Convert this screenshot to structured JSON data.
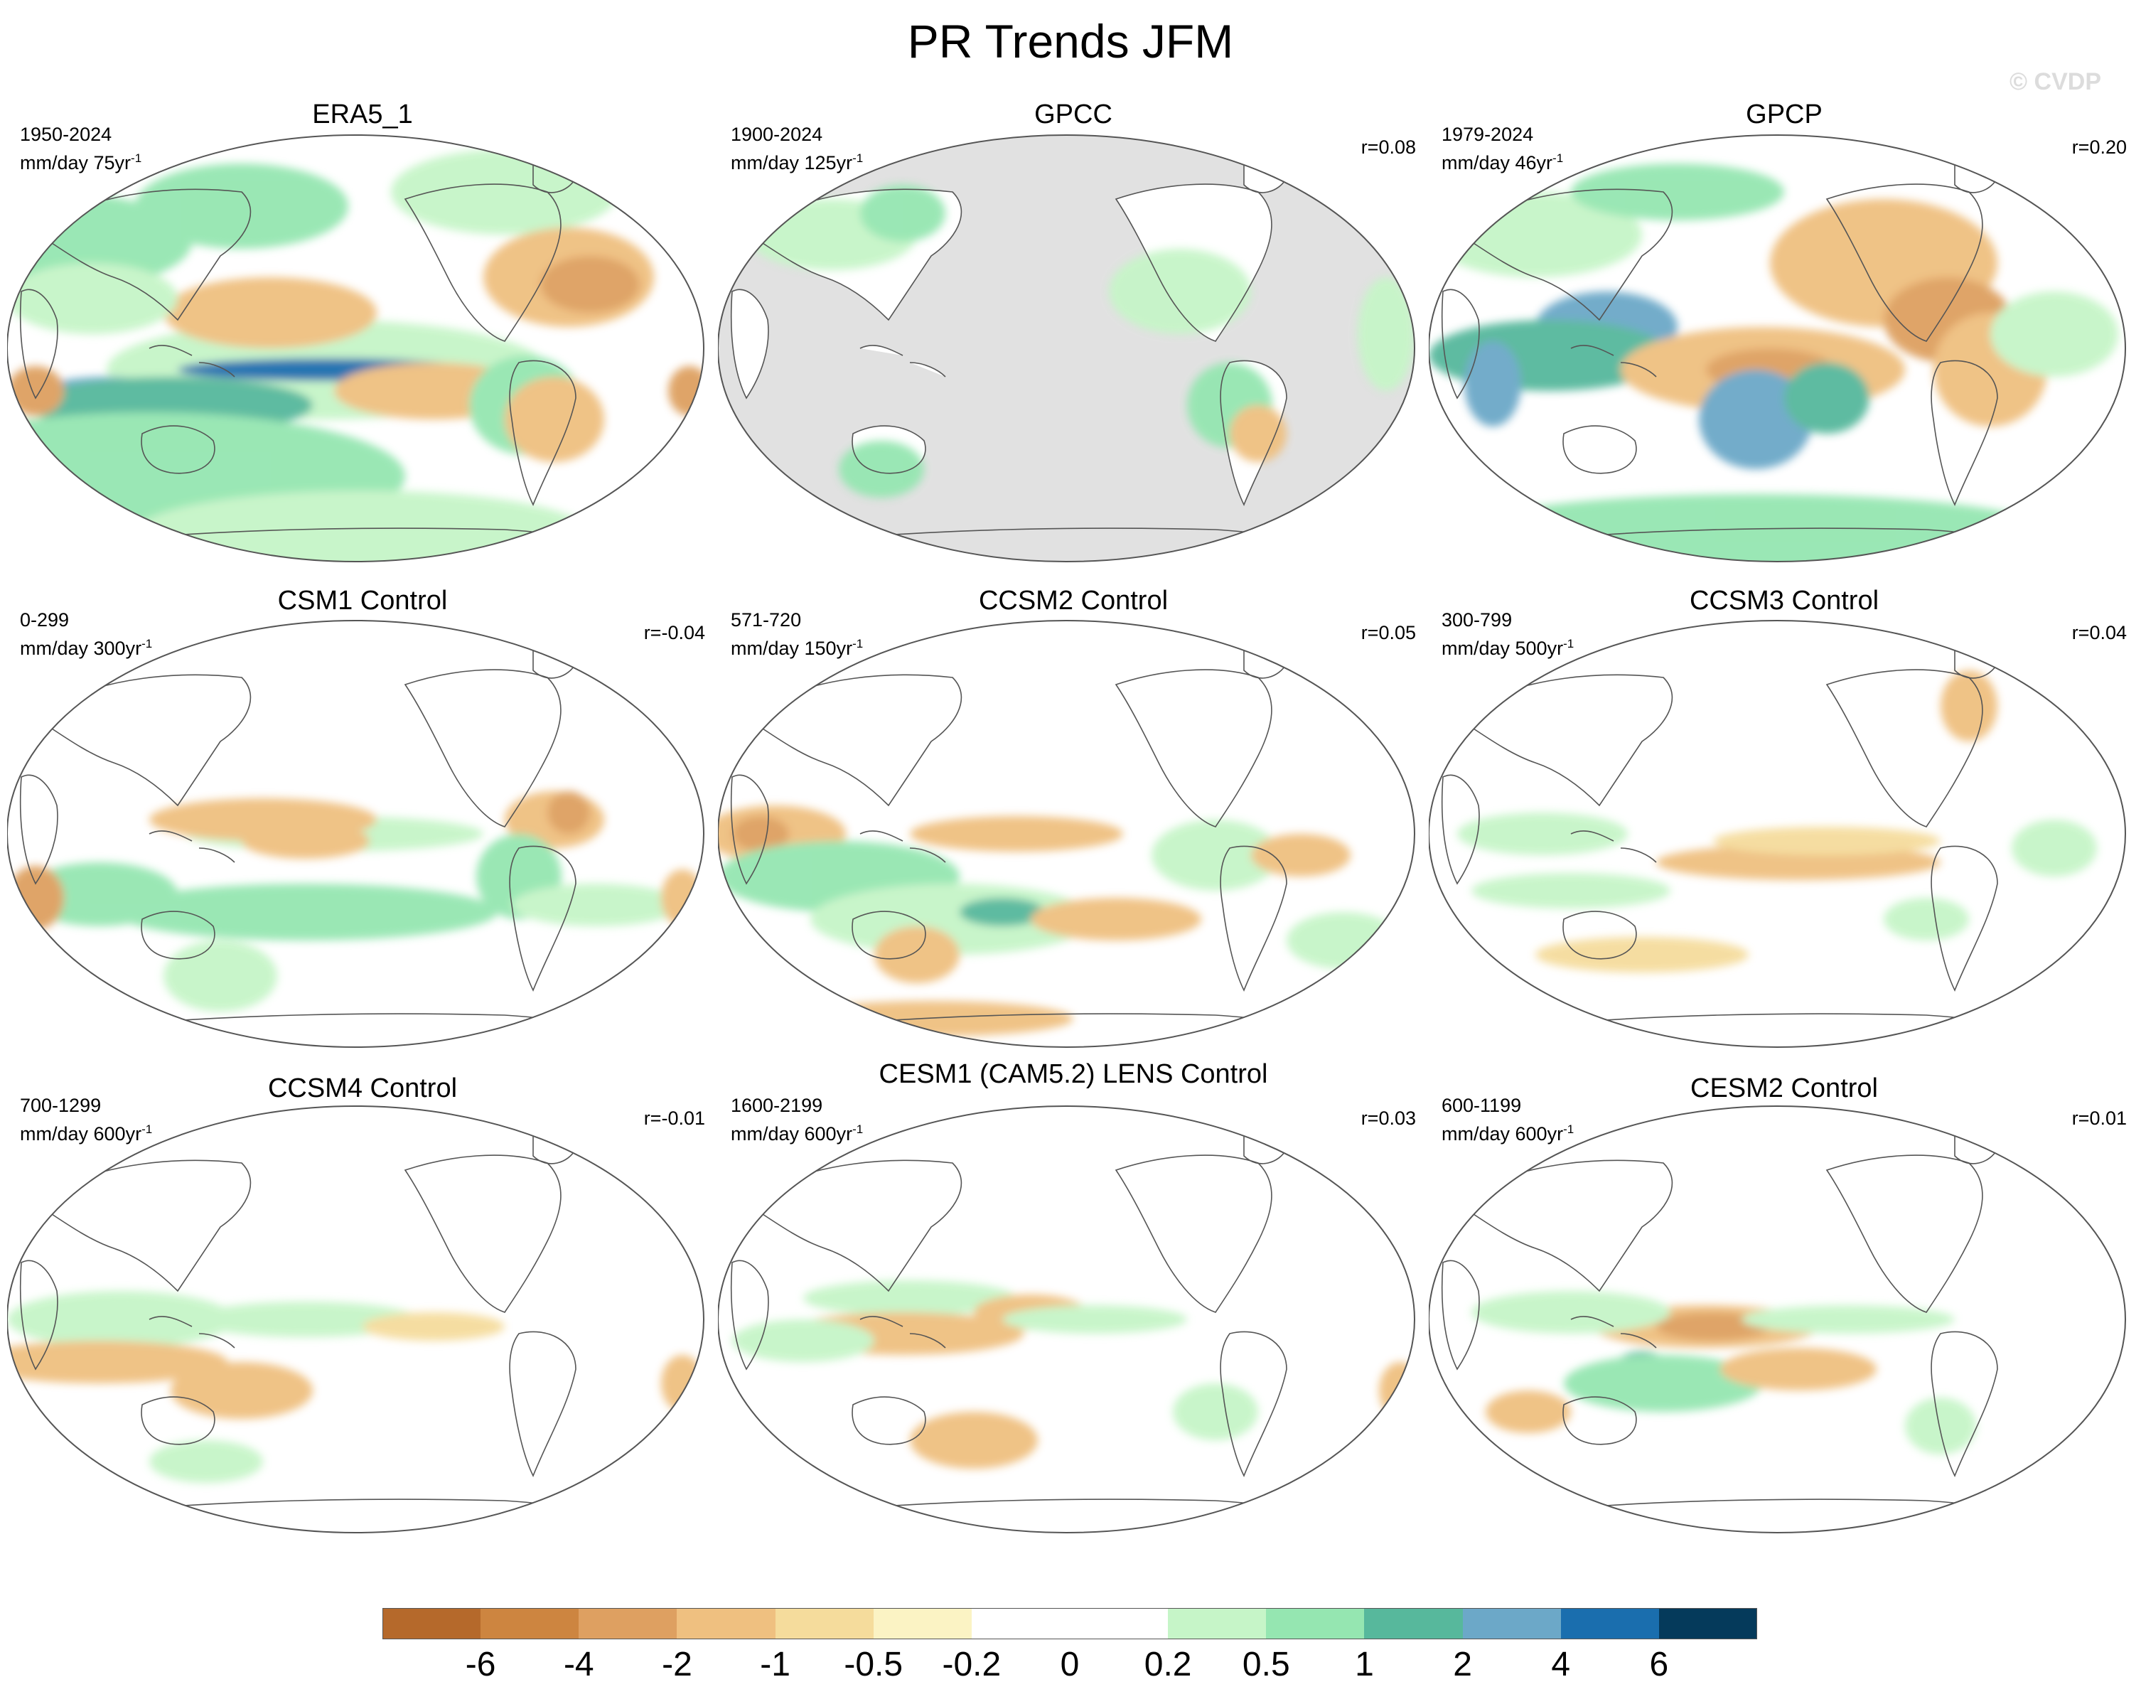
{
  "figure": {
    "title": "PR Trends JFM",
    "watermark": "© CVDP"
  },
  "panels": [
    {
      "title": "ERA5_1",
      "period": "1950-2024",
      "units": "mm/day 75yr",
      "units_exp": "-1",
      "corr": "",
      "mask": false
    },
    {
      "title": "GPCC",
      "period": "1900-2024",
      "units": "mm/day 125yr",
      "units_exp": "-1",
      "corr": "r=0.08",
      "mask": true
    },
    {
      "title": "GPCP",
      "period": "1979-2024",
      "units": "mm/day 46yr",
      "units_exp": "-1",
      "corr": "r=0.20",
      "mask": false
    },
    {
      "title": "CSM1 Control",
      "period": "0-299",
      "units": "mm/day 300yr",
      "units_exp": "-1",
      "corr": "r=-0.04",
      "mask": false
    },
    {
      "title": "CCSM2 Control",
      "period": "571-720",
      "units": "mm/day 150yr",
      "units_exp": "-1",
      "corr": "r=0.05",
      "mask": false
    },
    {
      "title": "CCSM3 Control",
      "period": "300-799",
      "units": "mm/day 500yr",
      "units_exp": "-1",
      "corr": "r=0.04",
      "mask": false
    },
    {
      "title": "CCSM4 Control",
      "period": "700-1299",
      "units": "mm/day 600yr",
      "units_exp": "-1",
      "corr": "r=-0.01",
      "mask": false
    },
    {
      "title": "CESM1 (CAM5.2) LENS Control",
      "period": "1600-2199",
      "units": "mm/day 600yr",
      "units_exp": "-1",
      "corr": "r=0.03",
      "mask": false
    },
    {
      "title": "CESM2 Control",
      "period": "600-1199",
      "units": "mm/day 600yr",
      "units_exp": "-1",
      "corr": "r=0.01",
      "mask": false
    }
  ],
  "colorbar": {
    "labels": [
      "-6",
      "-4",
      "-2",
      "-1",
      "-0.5",
      "-0.2",
      "0",
      "0.2",
      "0.5",
      "1",
      "2",
      "4",
      "6"
    ],
    "colors": [
      "#b5692b",
      "#cd8540",
      "#dea061",
      "#efc080",
      "#f5dc9c",
      "#fbf3c4",
      "#ffffff",
      "#ffffff",
      "#c6f5c8",
      "#95e6b1",
      "#57b89c",
      "#6ca8c8",
      "#1a6eae",
      "#053a5b"
    ]
  },
  "palette": {
    "land_mask": "#e1e1e1",
    "coast": "#555555",
    "frame": "#555555"
  }
}
